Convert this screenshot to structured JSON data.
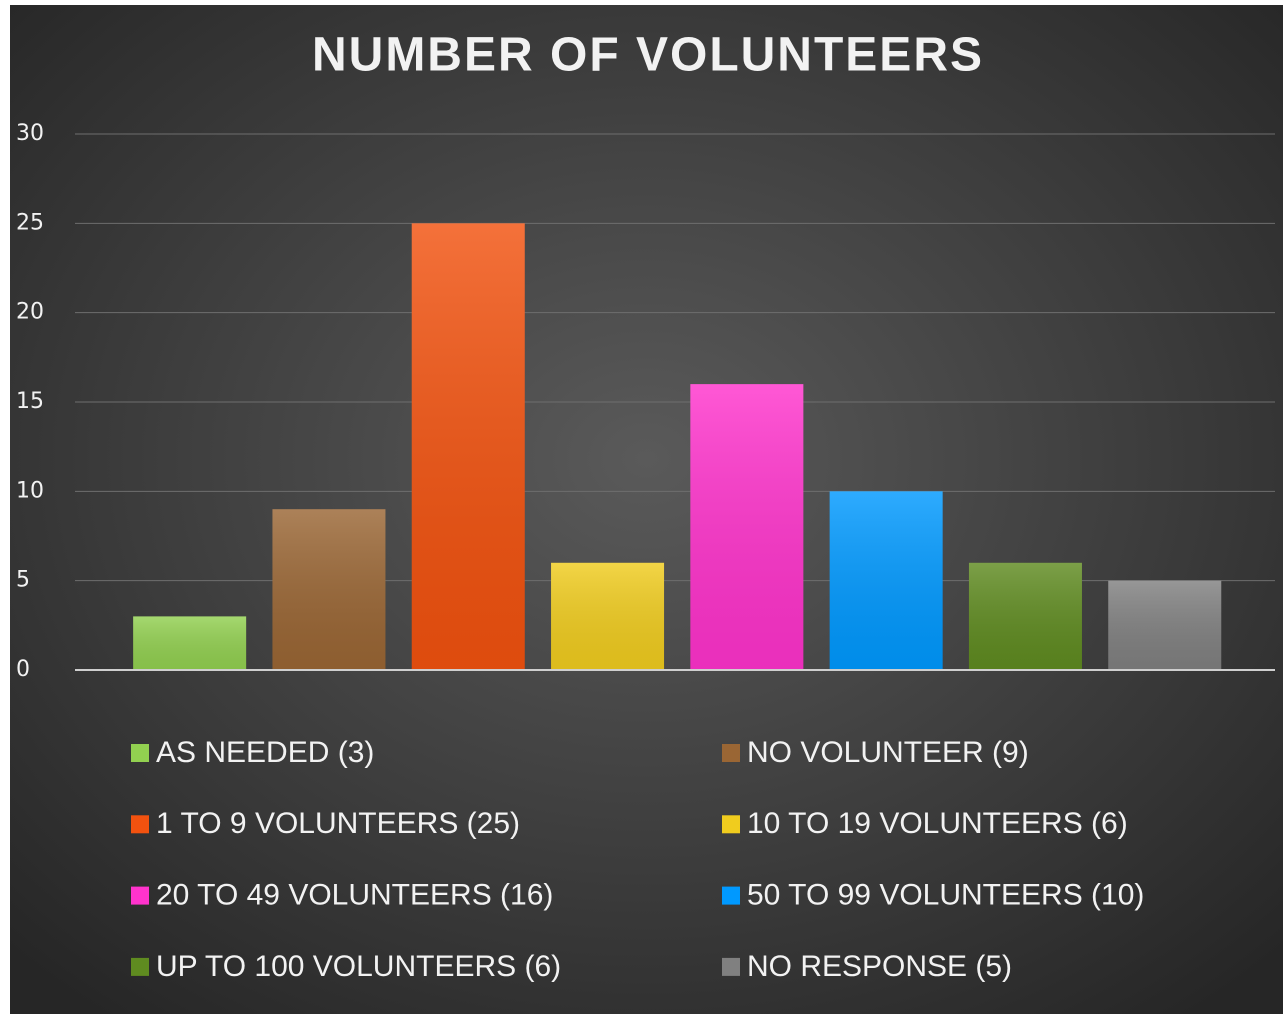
{
  "chart_data": {
    "type": "bar",
    "title": "NUMBER OF VOLUNTEERS",
    "series": [
      {
        "name": "AS NEEDED (3)",
        "color": "#92d050",
        "values": [
          3
        ]
      },
      {
        "name": "NO VOLUNTEER (9)",
        "color": "#9a6634",
        "values": [
          9
        ]
      },
      {
        "name": "1 TO 9 VOLUNTEERS (25)",
        "color": "#f2520f",
        "values": [
          25
        ]
      },
      {
        "name": "10 TO 19 VOLUNTEERS (6)",
        "color": "#f0cc1e",
        "values": [
          6
        ]
      },
      {
        "name": "20 TO 49 VOLUNTEERS (16)",
        "color": "#ff33cc",
        "values": [
          16
        ]
      },
      {
        "name": "50 TO 99 VOLUNTEERS (10)",
        "color": "#0099ff",
        "values": [
          10
        ]
      },
      {
        "name": "UP TO 100 VOLUNTEERS (6)",
        "color": "#5f8b20",
        "values": [
          6
        ]
      },
      {
        "name": "NO RESPONSE (5)",
        "color": "#808080",
        "values": [
          5
        ]
      }
    ],
    "ylim": [
      0,
      30
    ],
    "yticks": [
      0,
      5,
      10,
      15,
      20,
      25,
      30
    ],
    "grid": true
  }
}
